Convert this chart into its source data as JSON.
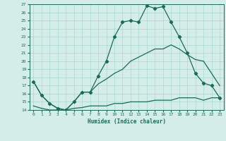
{
  "xlabel": "Humidex (Indice chaleur)",
  "bg_color": "#d4ede8",
  "grid_color": "#a8d8d0",
  "line_color": "#1a6b5a",
  "xlim": [
    -0.5,
    23.5
  ],
  "ylim": [
    14,
    27
  ],
  "xticks": [
    0,
    1,
    2,
    3,
    4,
    5,
    6,
    7,
    8,
    9,
    10,
    11,
    12,
    13,
    14,
    15,
    16,
    17,
    18,
    19,
    20,
    21,
    22,
    23
  ],
  "yticks": [
    14,
    15,
    16,
    17,
    18,
    19,
    20,
    21,
    22,
    23,
    24,
    25,
    26,
    27
  ],
  "line1_x": [
    0,
    1,
    2,
    3,
    4,
    5,
    6,
    7,
    8,
    9,
    10,
    11,
    12,
    13,
    14,
    15,
    16,
    17,
    18,
    19,
    20,
    21,
    22,
    23
  ],
  "line1_y": [
    17.5,
    15.8,
    14.8,
    14.2,
    14.0,
    15.0,
    16.2,
    16.2,
    18.2,
    20.0,
    23.0,
    24.8,
    25.0,
    24.8,
    26.8,
    26.5,
    26.7,
    24.8,
    23.0,
    21.0,
    18.5,
    17.3,
    17.0,
    15.5
  ],
  "line2_x": [
    0,
    1,
    2,
    3,
    4,
    5,
    6,
    7,
    8,
    9,
    10,
    11,
    12,
    13,
    14,
    15,
    16,
    17,
    18,
    19,
    20,
    21,
    22,
    23
  ],
  "line2_y": [
    17.5,
    15.8,
    14.8,
    14.2,
    14.0,
    15.0,
    16.2,
    16.2,
    17.2,
    17.8,
    18.5,
    19.0,
    20.0,
    20.5,
    21.0,
    21.5,
    21.5,
    22.0,
    21.5,
    20.8,
    20.2,
    20.0,
    18.5,
    17.0
  ],
  "line3_x": [
    0,
    1,
    2,
    3,
    4,
    5,
    6,
    7,
    8,
    9,
    10,
    11,
    12,
    13,
    14,
    15,
    16,
    17,
    18,
    19,
    20,
    21,
    22,
    23
  ],
  "line3_y": [
    14.5,
    14.2,
    14.0,
    14.0,
    14.0,
    14.2,
    14.3,
    14.5,
    14.5,
    14.5,
    14.8,
    14.8,
    15.0,
    15.0,
    15.0,
    15.2,
    15.2,
    15.2,
    15.5,
    15.5,
    15.5,
    15.2,
    15.5,
    15.5
  ]
}
